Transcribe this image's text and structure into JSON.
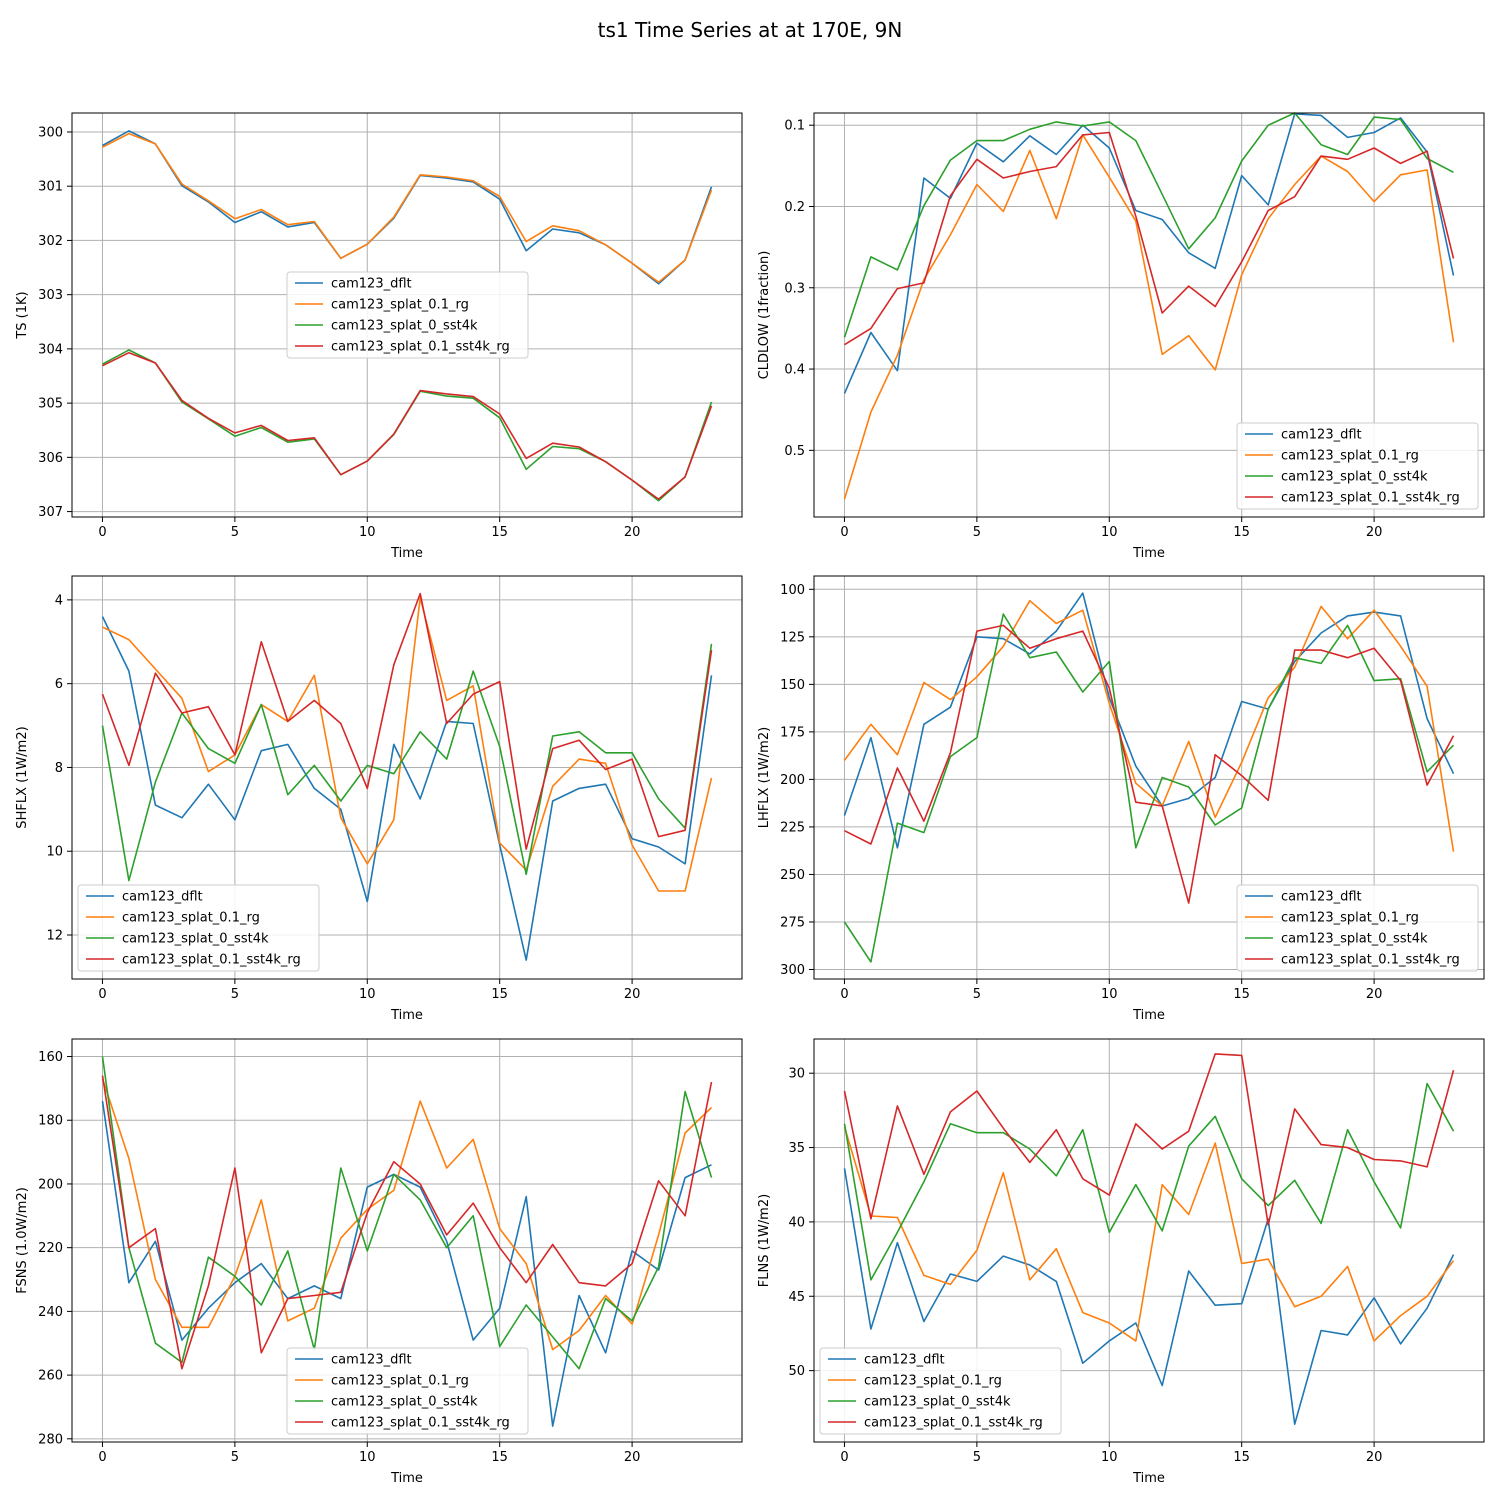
{
  "figure": {
    "title": "ts1 Time Series at at 170E, 9N"
  },
  "colors": {
    "cam123_dflt": "#1f77b4",
    "cam123_splat_0.1_rg": "#ff7f0e",
    "cam123_splat_0_sst4k": "#2ca02c",
    "cam123_splat_0.1_sst4k_rg": "#d62728",
    "grid": "#b0b0b0",
    "axis": "#000000"
  },
  "chart_data": [
    {
      "type": "line",
      "title": "",
      "xlabel": "Time",
      "ylabel": "TS (1K)",
      "y_inverted": true,
      "grid": true,
      "legend_position": "center",
      "xlim": [
        -1.15,
        24.15
      ],
      "ylim": [
        307.1,
        299.65
      ],
      "xticks": [
        0,
        5,
        10,
        15,
        20
      ],
      "yticks": [
        300,
        301,
        302,
        303,
        304,
        305,
        306,
        307
      ],
      "x": [
        0,
        1,
        2,
        3,
        4,
        5,
        6,
        7,
        8,
        9,
        10,
        11,
        12,
        13,
        14,
        15,
        16,
        17,
        18,
        19,
        20,
        21,
        22,
        23
      ],
      "series": [
        {
          "name": "cam123_dflt",
          "values": [
            300.25,
            299.98,
            300.22,
            300.99,
            301.29,
            301.67,
            301.47,
            301.75,
            301.67,
            302.33,
            302.07,
            301.59,
            300.8,
            300.85,
            300.92,
            301.24,
            302.19,
            301.79,
            301.86,
            302.08,
            302.42,
            302.8,
            302.36,
            301.01
          ]
        },
        {
          "name": "cam123_splat_0.1_rg",
          "values": [
            300.28,
            300.03,
            300.22,
            300.96,
            301.27,
            301.6,
            301.43,
            301.71,
            301.65,
            302.33,
            302.07,
            301.57,
            300.79,
            300.83,
            300.9,
            301.19,
            302.02,
            301.73,
            301.82,
            302.08,
            302.42,
            302.77,
            302.36,
            301.07
          ]
        },
        {
          "name": "cam123_splat_0_sst4k",
          "values": [
            304.28,
            304.02,
            304.26,
            304.98,
            305.29,
            305.61,
            305.45,
            305.72,
            305.66,
            306.32,
            306.07,
            305.58,
            304.78,
            304.87,
            304.91,
            305.27,
            306.22,
            305.8,
            305.84,
            306.08,
            306.42,
            306.8,
            306.36,
            304.98
          ]
        },
        {
          "name": "cam123_splat_0.1_sst4k_rg",
          "values": [
            304.31,
            304.07,
            304.26,
            304.95,
            305.28,
            305.55,
            305.41,
            305.69,
            305.64,
            306.32,
            306.07,
            305.57,
            304.77,
            304.83,
            304.88,
            305.2,
            306.02,
            305.74,
            305.81,
            306.08,
            306.42,
            306.77,
            306.36,
            305.05
          ]
        }
      ]
    },
    {
      "type": "line",
      "title": "",
      "xlabel": "Time",
      "ylabel": "CLDLOW (1fraction)",
      "y_inverted": true,
      "grid": true,
      "legend_position": "lower right",
      "xlim": [
        -1.15,
        24.15
      ],
      "ylim": [
        0.582,
        0.085
      ],
      "xticks": [
        0,
        5,
        10,
        15,
        20
      ],
      "yticks": [
        0.1,
        0.2,
        0.3,
        0.4,
        0.5
      ],
      "x": [
        0,
        1,
        2,
        3,
        4,
        5,
        6,
        7,
        8,
        9,
        10,
        11,
        12,
        13,
        14,
        15,
        16,
        17,
        18,
        19,
        20,
        21,
        22,
        23
      ],
      "series": [
        {
          "name": "cam123_dflt",
          "values": [
            0.43,
            0.355,
            0.402,
            0.165,
            0.19,
            0.122,
            0.145,
            0.113,
            0.136,
            0.1,
            0.128,
            0.205,
            0.216,
            0.257,
            0.276,
            0.162,
            0.198,
            0.086,
            0.088,
            0.115,
            0.109,
            0.091,
            0.133,
            0.285
          ]
        },
        {
          "name": "cam123_splat_0.1_rg",
          "values": [
            0.56,
            0.453,
            0.383,
            0.29,
            0.235,
            0.173,
            0.206,
            0.131,
            0.215,
            0.112,
            0.164,
            0.218,
            0.382,
            0.359,
            0.401,
            0.284,
            0.215,
            0.173,
            0.138,
            0.157,
            0.194,
            0.161,
            0.155,
            0.367
          ]
        },
        {
          "name": "cam123_splat_0_sst4k",
          "values": [
            0.361,
            0.262,
            0.278,
            0.199,
            0.143,
            0.119,
            0.119,
            0.105,
            0.096,
            0.101,
            0.096,
            0.119,
            0.185,
            0.252,
            0.214,
            0.144,
            0.1,
            0.085,
            0.124,
            0.136,
            0.09,
            0.093,
            0.141,
            0.158
          ]
        },
        {
          "name": "cam123_splat_0.1_sst4k_rg",
          "values": [
            0.37,
            0.35,
            0.301,
            0.294,
            0.187,
            0.142,
            0.165,
            0.157,
            0.151,
            0.112,
            0.109,
            0.212,
            0.331,
            0.298,
            0.323,
            0.268,
            0.205,
            0.188,
            0.138,
            0.142,
            0.128,
            0.147,
            0.132,
            0.264
          ]
        }
      ]
    },
    {
      "type": "line",
      "title": "",
      "xlabel": "Time",
      "ylabel": "SHFLX (1W/m2)",
      "y_inverted": true,
      "grid": true,
      "legend_position": "lower left",
      "xlim": [
        -1.15,
        24.15
      ],
      "ylim": [
        13.05,
        3.43
      ],
      "xticks": [
        0,
        5,
        10,
        15,
        20
      ],
      "yticks": [
        4,
        6,
        8,
        10,
        12
      ],
      "x": [
        0,
        1,
        2,
        3,
        4,
        5,
        6,
        7,
        8,
        9,
        10,
        11,
        12,
        13,
        14,
        15,
        16,
        17,
        18,
        19,
        20,
        21,
        22,
        23
      ],
      "series": [
        {
          "name": "cam123_dflt",
          "values": [
            4.4,
            5.7,
            8.9,
            9.2,
            8.4,
            9.25,
            7.6,
            7.45,
            8.5,
            9.0,
            11.2,
            7.45,
            8.75,
            6.9,
            6.95,
            9.85,
            12.6,
            8.8,
            8.5,
            8.4,
            9.7,
            9.9,
            10.3,
            5.8
          ]
        },
        {
          "name": "cam123_splat_0.1_rg",
          "values": [
            4.65,
            4.95,
            5.65,
            6.35,
            8.1,
            7.7,
            6.5,
            6.9,
            5.8,
            9.2,
            10.3,
            9.25,
            3.95,
            6.4,
            6.05,
            9.8,
            10.45,
            8.45,
            7.8,
            7.9,
            9.85,
            10.95,
            10.95,
            8.25
          ]
        },
        {
          "name": "cam123_splat_0_sst4k",
          "values": [
            7.0,
            10.7,
            8.35,
            6.7,
            7.55,
            7.9,
            6.5,
            8.65,
            7.95,
            8.8,
            7.95,
            8.15,
            7.15,
            7.8,
            5.7,
            7.5,
            10.55,
            7.25,
            7.15,
            7.65,
            7.65,
            8.75,
            9.45,
            5.05
          ]
        },
        {
          "name": "cam123_splat_0.1_sst4k_rg",
          "values": [
            6.25,
            7.95,
            5.75,
            6.7,
            6.55,
            7.7,
            5.0,
            6.9,
            6.4,
            6.95,
            8.5,
            5.55,
            3.85,
            6.95,
            6.25,
            5.95,
            9.95,
            7.55,
            7.35,
            8.05,
            7.8,
            9.65,
            9.5,
            5.2
          ]
        }
      ]
    },
    {
      "type": "line",
      "title": "",
      "xlabel": "Time",
      "ylabel": "LHFLX (1W/m2)",
      "y_inverted": true,
      "grid": true,
      "legend_position": "lower right",
      "xlim": [
        -1.15,
        24.15
      ],
      "ylim": [
        305,
        93
      ],
      "xticks": [
        0,
        5,
        10,
        15,
        20
      ],
      "yticks": [
        100,
        125,
        150,
        175,
        200,
        225,
        250,
        275,
        300
      ],
      "x": [
        0,
        1,
        2,
        3,
        4,
        5,
        6,
        7,
        8,
        9,
        10,
        11,
        12,
        13,
        14,
        15,
        16,
        17,
        18,
        19,
        20,
        21,
        22,
        23
      ],
      "series": [
        {
          "name": "cam123_dflt",
          "values": [
            219,
            178,
            236,
            171,
            162,
            125,
            126,
            134,
            122,
            102,
            157,
            193,
            214,
            210,
            199,
            159,
            163,
            138,
            123,
            114,
            112,
            114,
            168,
            197
          ]
        },
        {
          "name": "cam123_splat_0.1_rg",
          "values": [
            190,
            171,
            187,
            149,
            158,
            146,
            130,
            106,
            118,
            111,
            160,
            202,
            214,
            180,
            220,
            191,
            157,
            141,
            109,
            126,
            111,
            130,
            151,
            238
          ]
        },
        {
          "name": "cam123_splat_0_sst4k",
          "values": [
            275,
            296,
            223,
            228,
            188,
            178,
            113,
            136,
            133,
            154,
            138,
            236,
            199,
            204,
            224,
            215,
            163,
            136,
            139,
            119,
            148,
            147,
            196,
            182
          ]
        },
        {
          "name": "cam123_splat_0.1_sst4k_rg",
          "values": [
            227,
            234,
            194,
            222,
            186,
            122,
            119,
            131,
            126,
            122,
            152,
            212,
            214,
            265,
            187,
            198,
            211,
            132,
            132,
            136,
            131,
            148,
            203,
            177
          ]
        }
      ]
    },
    {
      "type": "line",
      "title": "",
      "xlabel": "Time",
      "ylabel": "FSNS (1.0W/m2)",
      "y_inverted": true,
      "grid": true,
      "legend_position": "lower center",
      "xlim": [
        -1.15,
        24.15
      ],
      "ylim": [
        281,
        154.5
      ],
      "xticks": [
        0,
        5,
        10,
        15,
        20
      ],
      "yticks": [
        160,
        180,
        200,
        220,
        240,
        260,
        280
      ],
      "x": [
        0,
        1,
        2,
        3,
        4,
        5,
        6,
        7,
        8,
        9,
        10,
        11,
        12,
        13,
        14,
        15,
        16,
        17,
        18,
        19,
        20,
        21,
        22,
        23
      ],
      "series": [
        {
          "name": "cam123_dflt",
          "values": [
            174,
            231,
            218,
            249,
            239,
            231,
            225,
            236,
            232,
            236,
            201,
            197,
            201,
            218,
            249,
            239,
            204,
            276,
            235,
            253,
            221,
            227,
            198,
            194
          ]
        },
        {
          "name": "cam123_splat_0.1_rg",
          "values": [
            167,
            192,
            230,
            245,
            245,
            229,
            205,
            243,
            239,
            217,
            208,
            202,
            174,
            195,
            186,
            214,
            225,
            252,
            246,
            235,
            244,
            216,
            184,
            176
          ]
        },
        {
          "name": "cam123_splat_0_sst4k",
          "values": [
            160,
            220,
            250,
            256,
            223,
            229,
            238,
            221,
            252,
            195,
            221,
            197,
            205,
            220,
            210,
            251,
            238,
            248,
            258,
            236,
            243,
            226,
            171,
            198
          ]
        },
        {
          "name": "cam123_splat_0.1_sst4k_rg",
          "values": [
            166,
            220,
            214,
            258,
            232,
            195,
            253,
            236,
            235,
            234,
            209,
            193,
            200,
            216,
            206,
            220,
            231,
            219,
            231,
            232,
            225,
            199,
            210,
            168
          ]
        }
      ]
    },
    {
      "type": "line",
      "title": "",
      "xlabel": "Time",
      "ylabel": "FLNS (1W/m2)",
      "y_inverted": true,
      "grid": true,
      "legend_position": "lower left",
      "xlim": [
        -1.15,
        24.15
      ],
      "ylim": [
        54.8,
        27.7
      ],
      "xticks": [
        0,
        5,
        10,
        15,
        20
      ],
      "yticks": [
        30,
        35,
        40,
        45,
        50
      ],
      "x": [
        0,
        1,
        2,
        3,
        4,
        5,
        6,
        7,
        8,
        9,
        10,
        11,
        12,
        13,
        14,
        15,
        16,
        17,
        18,
        19,
        20,
        21,
        22,
        23
      ],
      "series": [
        {
          "name": "cam123_dflt",
          "values": [
            36.4,
            47.2,
            41.4,
            46.7,
            43.5,
            44.0,
            42.3,
            42.9,
            44.0,
            49.5,
            48.0,
            46.8,
            51.0,
            43.3,
            45.6,
            45.5,
            39.8,
            53.6,
            47.3,
            47.6,
            45.1,
            48.2,
            45.8,
            42.2
          ]
        },
        {
          "name": "cam123_splat_0.1_rg",
          "values": [
            33.6,
            39.6,
            39.7,
            43.6,
            44.2,
            41.9,
            36.7,
            43.9,
            41.8,
            46.1,
            46.8,
            48.0,
            37.5,
            39.5,
            34.7,
            42.8,
            42.5,
            45.7,
            45.0,
            43.0,
            48.0,
            46.3,
            45.0,
            42.6
          ]
        },
        {
          "name": "cam123_splat_0_sst4k",
          "values": [
            33.4,
            43.9,
            40.7,
            37.3,
            33.4,
            34.0,
            34.0,
            35.1,
            36.9,
            33.8,
            40.7,
            37.5,
            40.6,
            34.9,
            32.9,
            37.1,
            38.9,
            37.2,
            40.1,
            33.8,
            37.3,
            40.4,
            30.7,
            33.9
          ]
        },
        {
          "name": "cam123_splat_0.1_sst4k_rg",
          "values": [
            31.2,
            39.8,
            32.2,
            36.8,
            32.6,
            31.2,
            33.7,
            36.0,
            33.8,
            37.1,
            38.2,
            33.4,
            35.1,
            33.9,
            28.7,
            28.8,
            40.2,
            32.4,
            34.8,
            35.0,
            35.8,
            35.9,
            36.3,
            29.8
          ]
        }
      ]
    }
  ]
}
